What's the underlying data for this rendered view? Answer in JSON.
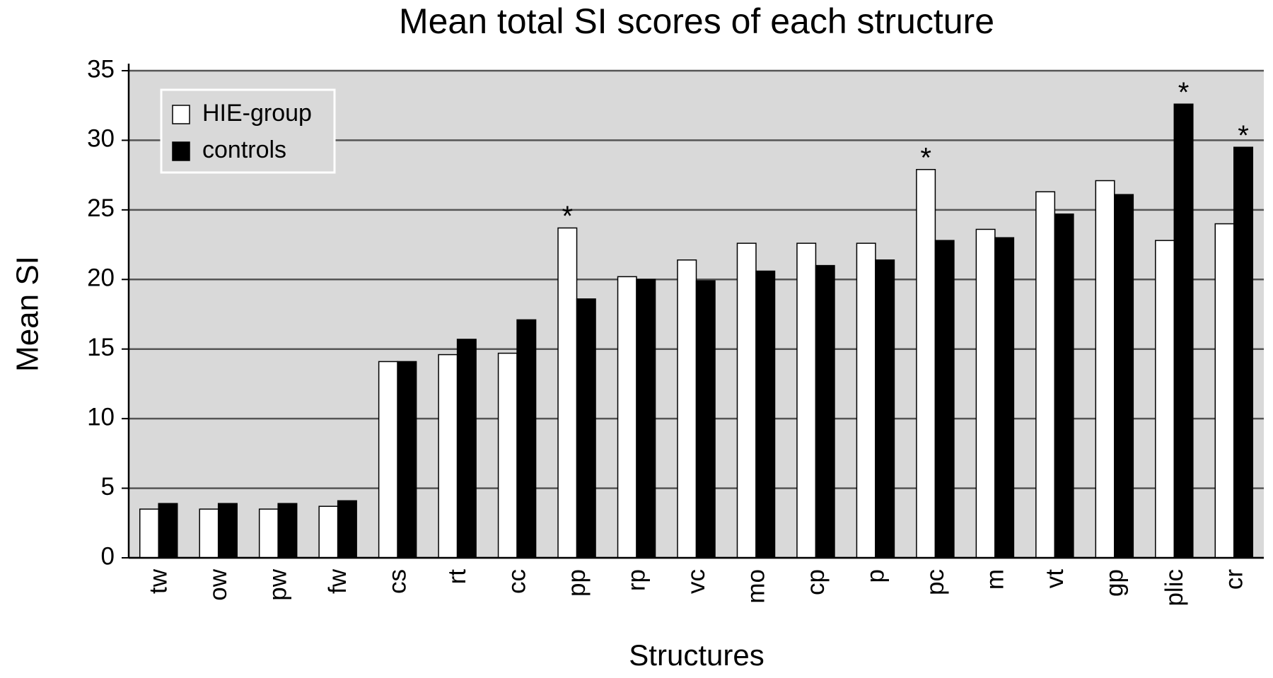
{
  "chart_data": {
    "type": "bar",
    "title": "Mean total SI scores of each structure",
    "xlabel": "Structures",
    "ylabel": "Mean SI",
    "categories": [
      "tw",
      "ow",
      "pw",
      "fw",
      "cs",
      "rt",
      "cc",
      "pp",
      "rp",
      "vc",
      "mo",
      "cp",
      "p",
      "pc",
      "m",
      "vt",
      "gp",
      "plic",
      "cr"
    ],
    "series": [
      {
        "name": "HIE-group",
        "color": "#ffffff",
        "values": [
          3.5,
          3.5,
          3.5,
          3.7,
          14.1,
          14.6,
          14.7,
          23.7,
          20.2,
          21.4,
          22.6,
          22.6,
          22.6,
          27.9,
          23.6,
          26.3,
          27.1,
          22.8,
          24.0
        ]
      },
      {
        "name": "controls",
        "color": "#000000",
        "values": [
          3.9,
          3.9,
          3.9,
          4.1,
          14.1,
          15.7,
          17.1,
          18.6,
          20.0,
          19.9,
          20.6,
          21.0,
          21.4,
          22.8,
          23.0,
          24.7,
          26.1,
          32.6,
          29.5
        ]
      }
    ],
    "annotations": [
      {
        "text": "*",
        "category": "pp"
      },
      {
        "text": "*",
        "category": "pc"
      },
      {
        "text": "*",
        "category": "plic"
      },
      {
        "text": "*",
        "category": "cr"
      }
    ],
    "ylim": [
      0,
      35
    ],
    "yticks": [
      0,
      5,
      10,
      15,
      20,
      25,
      30,
      35
    ],
    "grid": true,
    "legend": "upper left"
  }
}
